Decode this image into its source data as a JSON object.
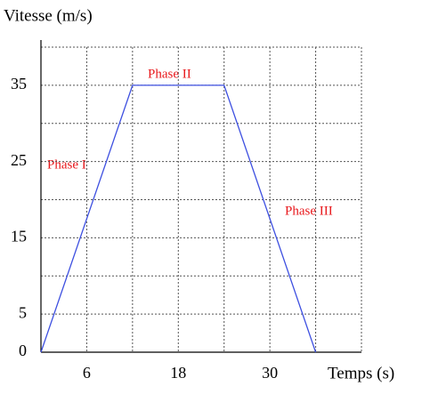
{
  "chart_data": {
    "type": "line",
    "ylabel": "Vitesse (m/s)",
    "xlabel": "Temps (s)",
    "x": [
      0,
      12,
      24,
      36
    ],
    "series": [
      {
        "color": "#3d4fe0",
        "values": [
          0,
          35,
          35,
          0
        ]
      }
    ],
    "xlim": [
      0,
      42
    ],
    "ylim": [
      0,
      40
    ],
    "xticks": [
      6,
      18,
      30
    ],
    "yticks": [
      0,
      5,
      15,
      25,
      35
    ],
    "xgrid": [
      0,
      6,
      12,
      18,
      24,
      30,
      36,
      42
    ],
    "ygrid": [
      0,
      5,
      10,
      15,
      20,
      25,
      30,
      35,
      40
    ],
    "annotations": [
      "Phase I",
      "Phase II",
      "Phase III"
    ]
  }
}
